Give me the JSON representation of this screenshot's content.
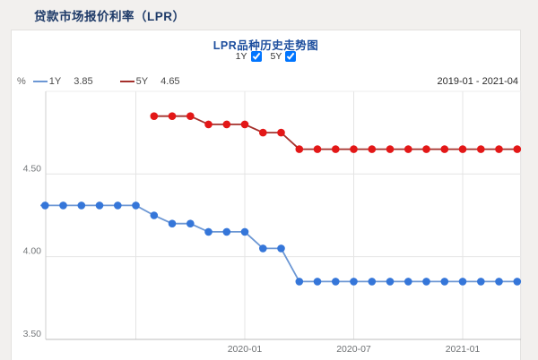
{
  "page": {
    "title": "贷款市场报价利率（LPR）",
    "background": "#f2f0ee"
  },
  "card": {
    "title": "LPR品种历史走势图",
    "toggles": [
      {
        "label": "1Y",
        "checked": true
      },
      {
        "label": "5Y",
        "checked": true
      }
    ],
    "legend": {
      "unit": "%",
      "items": [
        {
          "name": "1Y",
          "value": "3.85",
          "line_color": "#6c97d4",
          "point_color": "#3576d9"
        },
        {
          "name": "5Y",
          "value": "4.65",
          "line_color": "#a5302b",
          "point_color": "#e31717"
        }
      ],
      "date_range": "2019-01 - 2021-04"
    }
  },
  "chart_data": {
    "type": "line",
    "title": "LPR品种历史走势图",
    "x": [
      "2019-01",
      "2019-02",
      "2019-03",
      "2019-04",
      "2019-05",
      "2019-06",
      "2019-07",
      "2019-08",
      "2019-09",
      "2019-10",
      "2019-11",
      "2019-12",
      "2020-01",
      "2020-02",
      "2020-03",
      "2020-04",
      "2020-05",
      "2020-06",
      "2020-07",
      "2020-08",
      "2020-09",
      "2020-10",
      "2020-11",
      "2020-12",
      "2021-01",
      "2021-02",
      "2021-03",
      "2021-04"
    ],
    "series": [
      {
        "name": "1Y",
        "line_color": "#6c97d4",
        "point_color": "#3576d9",
        "values": [
          4.31,
          4.31,
          4.31,
          4.31,
          4.31,
          4.31,
          4.31,
          4.25,
          4.2,
          4.2,
          4.15,
          4.15,
          4.15,
          4.05,
          4.05,
          3.85,
          3.85,
          3.85,
          3.85,
          3.85,
          3.85,
          3.85,
          3.85,
          3.85,
          3.85,
          3.85,
          3.85,
          3.85
        ]
      },
      {
        "name": "5Y",
        "line_color": "#a5302b",
        "point_color": "#e31717",
        "values": [
          null,
          null,
          null,
          null,
          null,
          null,
          null,
          4.85,
          4.85,
          4.85,
          4.8,
          4.8,
          4.8,
          4.75,
          4.75,
          4.65,
          4.65,
          4.65,
          4.65,
          4.65,
          4.65,
          4.65,
          4.65,
          4.65,
          4.65,
          4.65,
          4.65,
          4.65
        ]
      }
    ],
    "yticks": [
      {
        "value": 3.5,
        "label": "3.50"
      },
      {
        "value": 4.0,
        "label": "4.00"
      },
      {
        "value": 4.5,
        "label": "4.50"
      }
    ],
    "xticks": [
      {
        "month": "2019-07",
        "label": ""
      },
      {
        "month": "2020-01",
        "label": "2020-01"
      },
      {
        "month": "2020-07",
        "label": "2020-07"
      },
      {
        "month": "2021-01",
        "label": "2021-01"
      }
    ],
    "ylim": [
      3.5,
      5.0
    ],
    "grid": true,
    "legend_position": "top-left"
  }
}
